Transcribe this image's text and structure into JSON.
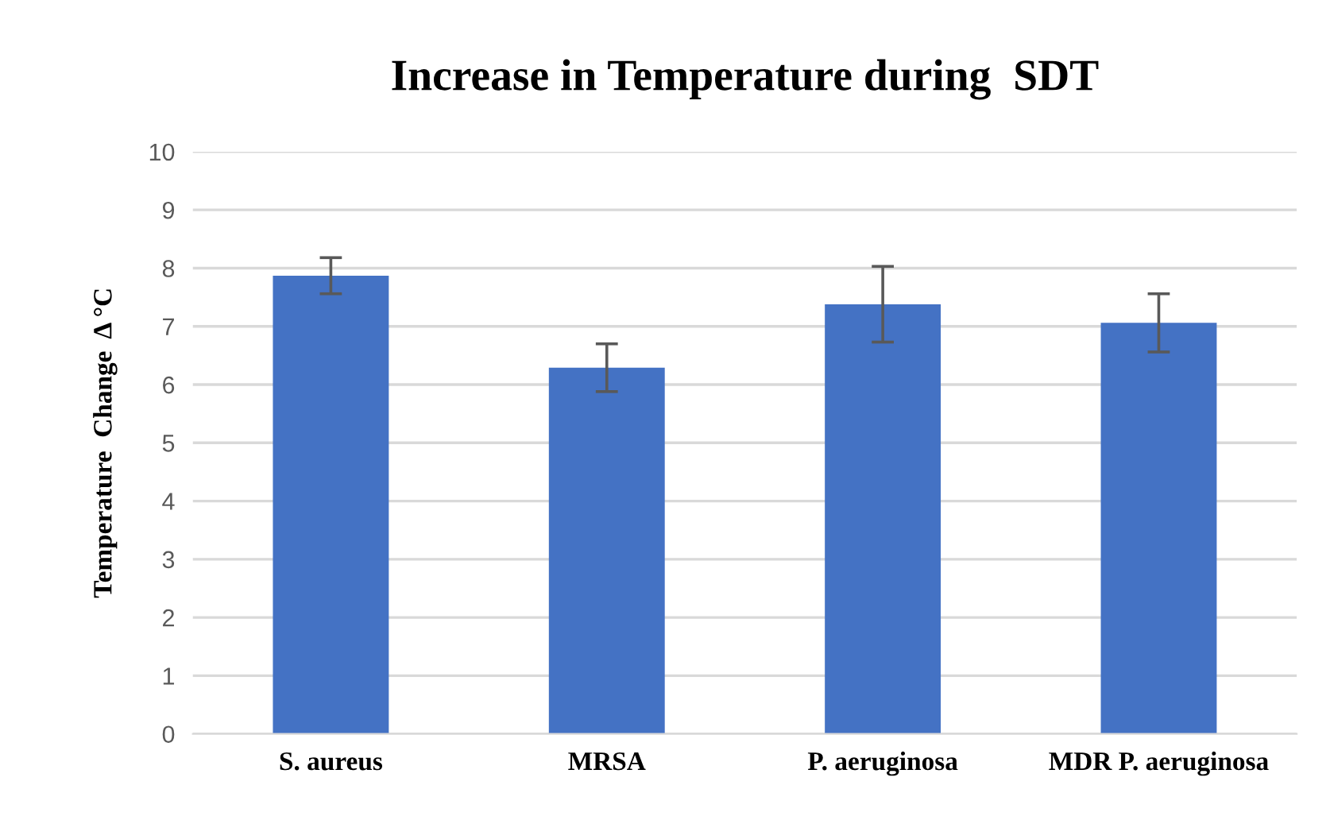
{
  "chart_data": {
    "type": "bar",
    "title": "Increase in Temperature during  SDT",
    "ylabel": "Temperature  Change  Δ °C",
    "categories": [
      "S. aureus",
      "MRSA",
      "P. aeruginosa",
      "MDR P. aeruginosa"
    ],
    "values": [
      7.87,
      6.29,
      7.38,
      7.06
    ],
    "errors": [
      0.31,
      0.41,
      0.65,
      0.5
    ],
    "color": "#4472c4",
    "ylim": [
      0,
      10
    ],
    "yticks": [
      0,
      1,
      2,
      3,
      4,
      5,
      6,
      7,
      8,
      9,
      10
    ],
    "grid": "y"
  }
}
